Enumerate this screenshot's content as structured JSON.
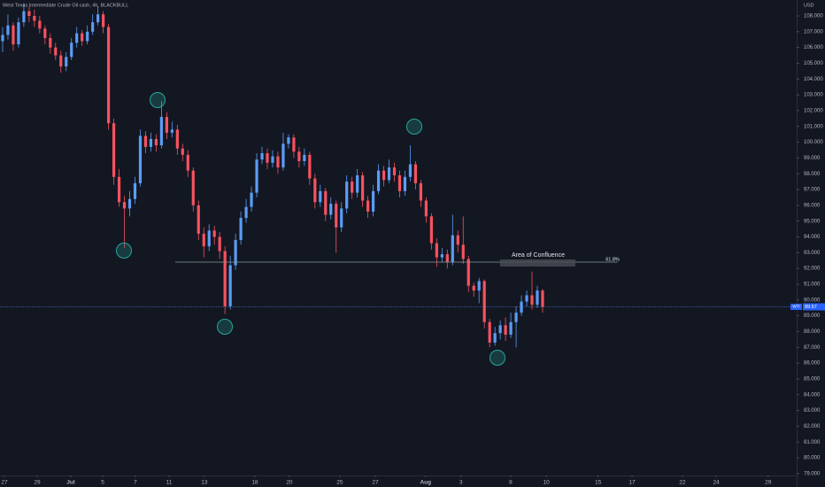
{
  "chart_data": {
    "type": "candlestick",
    "title": "West Texas Intermediate Crude Oil cash, 4h, BLACKBULL",
    "currency": "USD",
    "symbol_tag": "WTI",
    "annotation": "Area of Confluence",
    "fib_label": "61.8%",
    "up_color": "#5b9cf6",
    "down_color": "#f7525f",
    "grid": false,
    "xlim": [
      -0.5,
      150
    ],
    "ylim": [
      78.88,
      109.01
    ],
    "xticks": [
      {
        "value": 0.34,
        "label": "27"
      },
      {
        "value": 6.52,
        "label": "29"
      },
      {
        "value": 12.88,
        "label": "Jul"
      },
      {
        "value": 18.9,
        "label": "5"
      },
      {
        "value": 25.08,
        "label": "7"
      },
      {
        "value": 31.44,
        "label": "11"
      },
      {
        "value": 38.1,
        "label": "13"
      },
      {
        "value": 47.65,
        "label": "18"
      },
      {
        "value": 54.17,
        "label": "20"
      },
      {
        "value": 63.7,
        "label": "25"
      },
      {
        "value": 70.4,
        "label": "27"
      },
      {
        "value": 79.9,
        "label": "Aug"
      },
      {
        "value": 86.6,
        "label": "3"
      },
      {
        "value": 95.97,
        "label": "8"
      },
      {
        "value": 102.7,
        "label": "10"
      },
      {
        "value": 112.5,
        "label": "15"
      },
      {
        "value": 118.9,
        "label": "17"
      },
      {
        "value": 128.4,
        "label": "22"
      },
      {
        "value": 134.8,
        "label": "24"
      },
      {
        "value": 144.6,
        "label": "29"
      }
    ],
    "yticks": [
      {
        "value": 79,
        "label": "79.000"
      },
      {
        "value": 80,
        "label": "80.000"
      },
      {
        "value": 81,
        "label": "81.000"
      },
      {
        "value": 82,
        "label": "82.000"
      },
      {
        "value": 83,
        "label": "83.000"
      },
      {
        "value": 84,
        "label": "84.000"
      },
      {
        "value": 85,
        "label": "85.000"
      },
      {
        "value": 86,
        "label": "86.000"
      },
      {
        "value": 87,
        "label": "87.000"
      },
      {
        "value": 88,
        "label": "88.000"
      },
      {
        "value": 89,
        "label": "89.000"
      },
      {
        "value": 90,
        "label": "90.000"
      },
      {
        "value": 91,
        "label": "91.000"
      },
      {
        "value": 92,
        "label": "92.000"
      },
      {
        "value": 93,
        "label": "93.000"
      },
      {
        "value": 94,
        "label": "94.000"
      },
      {
        "value": 95,
        "label": "95.000"
      },
      {
        "value": 96,
        "label": "96.000"
      },
      {
        "value": 97,
        "label": "97.000"
      },
      {
        "value": 98,
        "label": "98.000"
      },
      {
        "value": 99,
        "label": "99.000"
      },
      {
        "value": 100,
        "label": "100.000"
      },
      {
        "value": 101,
        "label": "101.000"
      },
      {
        "value": 102,
        "label": "102.000"
      },
      {
        "value": 103,
        "label": "103.000"
      },
      {
        "value": 104,
        "label": "104.000"
      },
      {
        "value": 105,
        "label": "105.000"
      },
      {
        "value": 106,
        "label": "106.000"
      },
      {
        "value": 107,
        "label": "107.000"
      },
      {
        "value": 108,
        "label": "108.000"
      }
    ],
    "open": [
      106.4,
      106.8,
      107.4,
      106.2,
      107.6,
      108.3,
      108.0,
      107.7,
      107.2,
      106.6,
      106.0,
      105.5,
      104.8,
      105.4,
      106.3,
      106.9,
      106.4,
      107.0,
      107.6,
      108.1,
      107.3,
      101.2,
      97.8,
      96.2,
      95.8,
      96.4,
      97.4,
      100.4,
      99.7,
      100.2,
      99.8,
      101.6,
      100.6,
      100.8,
      99.6,
      99.2,
      98.2,
      96.0,
      94.2,
      93.4,
      94.4,
      94.0,
      93.1,
      89.6,
      92.2,
      93.8,
      95.2,
      95.9,
      96.8,
      98.9,
      99.3,
      98.7,
      99.1,
      98.4,
      99.9,
      100.3,
      99.4,
      98.8,
      99.2,
      97.7,
      96.2,
      96.9,
      95.4,
      96.1,
      94.6,
      95.8,
      97.5,
      96.8,
      97.9,
      96.3,
      95.6,
      96.9,
      98.2,
      97.6,
      98.4,
      97.9,
      96.9,
      97.8,
      98.6,
      97.4,
      96.3,
      95.3,
      93.6,
      92.7,
      92.9,
      92.4,
      94.1,
      93.5,
      92.6,
      90.9,
      90.6,
      91.2,
      88.6,
      87.3,
      87.9,
      88.4,
      87.8,
      88.6,
      89.2,
      89.9,
      90.3,
      89.7,
      90.6
    ],
    "high": [
      107.3,
      108.1,
      107.6,
      107.9,
      108.8,
      108.6,
      108.4,
      108.0,
      107.4,
      106.9,
      106.3,
      105.8,
      105.7,
      106.6,
      107.3,
      107.1,
      107.4,
      108.1,
      108.6,
      108.3,
      107.5,
      101.5,
      98.3,
      96.6,
      96.9,
      97.8,
      100.8,
      100.7,
      100.6,
      100.5,
      102.6,
      101.9,
      101.3,
      101.1,
      99.9,
      99.5,
      98.4,
      96.3,
      94.6,
      94.8,
      94.7,
      94.3,
      93.4,
      92.8,
      94.2,
      95.6,
      96.4,
      97.2,
      99.3,
      99.7,
      99.6,
      99.5,
      99.4,
      100.6,
      100.5,
      100.5,
      99.7,
      99.6,
      99.4,
      98.0,
      97.3,
      97.1,
      96.5,
      96.3,
      96.2,
      97.9,
      97.8,
      98.3,
      98.1,
      96.6,
      97.3,
      98.6,
      98.5,
      98.9,
      98.7,
      98.2,
      98.2,
      99.8,
      98.8,
      97.6,
      96.5,
      95.5,
      93.9,
      93.3,
      93.2,
      95.4,
      94.4,
      95.3,
      92.8,
      91.1,
      91.4,
      91.3,
      88.8,
      88.3,
      88.7,
      88.9,
      89.2,
      89.6,
      90.3,
      90.6,
      91.8,
      90.9,
      90.7
    ],
    "low": [
      105.7,
      106.5,
      105.8,
      106.0,
      107.3,
      107.6,
      107.3,
      106.9,
      106.2,
      105.6,
      105.2,
      104.4,
      104.5,
      105.2,
      106.0,
      106.1,
      106.2,
      106.8,
      107.4,
      106.9,
      100.8,
      97.3,
      95.9,
      93.3,
      95.3,
      96.1,
      97.2,
      99.3,
      99.4,
      99.4,
      99.6,
      100.2,
      100.3,
      99.2,
      98.8,
      97.8,
      95.6,
      93.8,
      92.7,
      93.1,
      93.5,
      92.6,
      89.1,
      89.4,
      91.9,
      93.5,
      94.9,
      95.6,
      96.5,
      98.6,
      98.3,
      98.4,
      98.0,
      98.2,
      99.6,
      99.0,
      98.4,
      98.5,
      97.3,
      95.8,
      95.9,
      95.0,
      95.1,
      93.0,
      94.3,
      95.5,
      96.4,
      96.5,
      95.9,
      95.2,
      95.3,
      96.7,
      97.2,
      97.4,
      97.5,
      96.5,
      96.6,
      97.5,
      97.0,
      95.9,
      94.9,
      93.2,
      92.1,
      92.4,
      92.0,
      92.2,
      93.0,
      92.3,
      90.5,
      90.2,
      89.8,
      88.2,
      87.0,
      87.1,
      87.5,
      87.4,
      87.6,
      87.0,
      89.0,
      89.6,
      89.4,
      89.5,
      89.2
    ],
    "close": [
      106.8,
      107.4,
      106.2,
      107.6,
      108.3,
      108.0,
      107.7,
      107.2,
      106.6,
      106.0,
      105.5,
      104.8,
      105.4,
      106.3,
      106.9,
      106.4,
      107.0,
      107.6,
      108.1,
      107.3,
      101.2,
      97.8,
      96.2,
      95.8,
      96.4,
      97.4,
      100.4,
      99.7,
      100.2,
      99.8,
      101.6,
      100.6,
      100.8,
      99.6,
      99.2,
      98.2,
      96.0,
      94.2,
      93.4,
      94.4,
      94.0,
      93.1,
      89.6,
      92.2,
      93.8,
      95.2,
      95.9,
      96.8,
      98.9,
      99.3,
      98.7,
      99.1,
      98.4,
      99.9,
      100.3,
      99.4,
      98.8,
      99.2,
      97.7,
      96.2,
      96.9,
      95.4,
      96.1,
      94.6,
      95.8,
      97.5,
      96.8,
      97.9,
      96.3,
      95.6,
      96.9,
      98.2,
      97.6,
      98.4,
      97.9,
      96.9,
      97.8,
      98.6,
      97.4,
      96.3,
      95.3,
      93.6,
      92.7,
      92.9,
      92.4,
      94.1,
      93.5,
      92.6,
      90.9,
      90.6,
      91.2,
      88.6,
      87.3,
      87.9,
      88.4,
      87.8,
      88.6,
      89.2,
      89.9,
      90.3,
      89.7,
      90.6,
      89.57
    ]
  }
}
